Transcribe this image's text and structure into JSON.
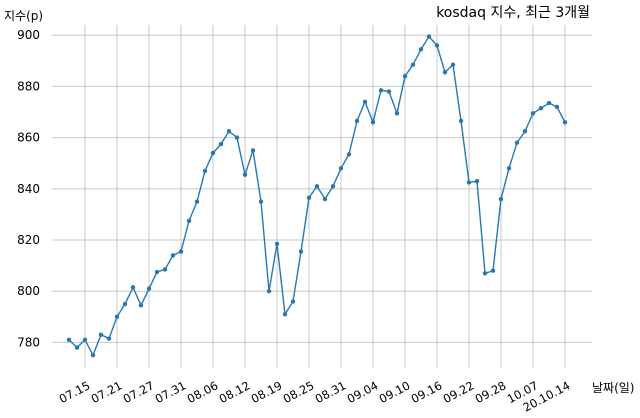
{
  "chart_data": {
    "type": "line",
    "title": "kosdaq 지수, 최근 3개월",
    "ylabel": "지수(p)",
    "xlabel": "날짜(일)",
    "ylim": [
      770,
      904
    ],
    "yticks": [
      780,
      800,
      820,
      840,
      860,
      880,
      900
    ],
    "grid": true,
    "line_color": "#2878b0",
    "xtick_labels": [
      "07.15",
      "07.21",
      "07.27",
      "07.31",
      "08.06",
      "08.12",
      "08.19",
      "08.25",
      "08.31",
      "09.04",
      "09.10",
      "09.16",
      "09.22",
      "09.28",
      "10.07",
      "20.10.14"
    ],
    "xtick_index": [
      2,
      6,
      10,
      14,
      18,
      22,
      26,
      30,
      34,
      38,
      42,
      46,
      50,
      54,
      58,
      62
    ],
    "values": [
      781,
      778,
      781,
      775,
      783,
      781.5,
      790,
      795,
      801.5,
      794.5,
      801,
      807.5,
      808.5,
      814,
      815.5,
      827.5,
      835,
      847,
      854,
      857.5,
      862.5,
      860,
      845.5,
      855,
      835,
      800,
      818.5,
      791,
      796,
      815.5,
      836.5,
      841,
      836,
      841,
      848,
      853.5,
      866.5,
      874,
      866,
      878.5,
      878,
      869.5,
      884,
      888.5,
      894.5,
      899.5,
      896,
      885.5,
      888.5,
      866.5,
      842.5,
      843,
      807,
      808,
      836,
      848,
      858,
      862.5,
      869.5,
      871.5,
      873.5,
      872,
      866
    ]
  }
}
